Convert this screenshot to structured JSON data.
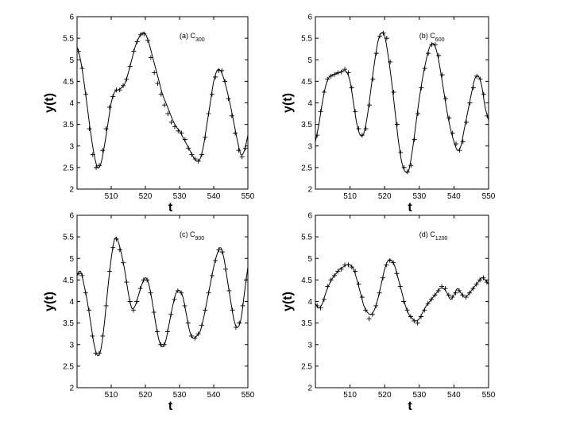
{
  "chart_data": [
    {
      "type": "line",
      "annotation": {
        "prefix": "(a) C",
        "sub": "300"
      },
      "xlabel": "t",
      "ylabel": "y(t)",
      "xlim": [
        500,
        550
      ],
      "ylim": [
        2,
        6
      ],
      "xticks": [
        510,
        520,
        530,
        540,
        550
      ],
      "yticks": [
        2,
        2.5,
        3,
        3.5,
        4,
        4.5,
        5,
        5.5,
        6
      ],
      "curve": {
        "x": [
          500,
          501,
          502,
          503,
          504,
          505,
          506,
          507,
          508,
          509,
          510,
          511,
          512,
          513,
          514,
          515,
          516,
          517,
          518,
          519,
          520,
          521,
          522,
          523,
          524,
          525,
          526,
          527,
          528,
          529,
          530,
          531,
          532,
          533,
          534,
          535,
          536,
          537,
          538,
          539,
          540,
          541,
          542,
          543,
          544,
          545,
          546,
          547,
          548,
          549,
          550
        ],
        "y": [
          5.3,
          5.0,
          4.5,
          3.9,
          3.3,
          2.8,
          2.5,
          2.6,
          3.0,
          3.5,
          4.0,
          4.25,
          4.3,
          4.35,
          4.45,
          4.7,
          5.0,
          5.3,
          5.5,
          5.62,
          5.6,
          5.4,
          5.1,
          4.8,
          4.5,
          4.2,
          4.0,
          3.8,
          3.6,
          3.45,
          3.35,
          3.2,
          3.05,
          2.9,
          2.75,
          2.65,
          2.7,
          3.0,
          3.5,
          4.0,
          4.5,
          4.75,
          4.75,
          4.55,
          4.25,
          3.9,
          3.5,
          3.1,
          2.8,
          2.9,
          3.25
        ]
      },
      "markers": {
        "x": [
          500.4,
          501.5,
          502.6,
          503.6,
          504.6,
          505.6,
          506.5,
          507.5,
          508.5,
          509.5,
          510.5,
          511.5,
          512.5,
          513.5,
          514.5,
          515.5,
          516.6,
          517.6,
          518.6,
          519.6,
          520.7,
          521.6,
          522.6,
          523.6,
          524.6,
          525.6,
          526.6,
          527.6,
          528.6,
          529.6,
          530.6,
          531.6,
          532.6,
          533.6,
          534.6,
          535.5,
          536.5,
          537.5,
          538.5,
          539.5,
          540.5,
          541.5,
          542.4,
          543.3,
          544.3,
          545.3,
          546.3,
          547.3,
          548.3,
          549.3
        ],
        "y": [
          5.2,
          4.8,
          4.2,
          3.4,
          2.8,
          2.5,
          2.55,
          2.9,
          3.4,
          3.9,
          4.15,
          4.3,
          4.3,
          4.4,
          4.55,
          4.85,
          5.2,
          5.42,
          5.58,
          5.6,
          5.45,
          5.05,
          4.7,
          4.45,
          4.2,
          3.95,
          3.75,
          3.55,
          3.45,
          3.35,
          3.3,
          3.15,
          2.95,
          2.8,
          2.7,
          2.65,
          2.8,
          3.2,
          3.75,
          4.2,
          4.6,
          4.75,
          4.75,
          4.5,
          4.1,
          3.7,
          3.3,
          2.9,
          2.75,
          2.95
        ]
      }
    },
    {
      "type": "line",
      "annotation": {
        "prefix": "(b) C",
        "sub": "600"
      },
      "xlabel": "t",
      "ylabel": "y(t)",
      "xlim": [
        500,
        550
      ],
      "ylim": [
        2,
        6
      ],
      "xticks": [
        510,
        520,
        530,
        540,
        550
      ],
      "yticks": [
        2,
        2.5,
        3,
        3.5,
        4,
        4.5,
        5,
        5.5,
        6
      ],
      "curve": {
        "x": [
          500,
          501,
          502,
          503,
          504,
          505,
          506,
          507,
          508,
          509,
          510,
          511,
          512,
          513,
          514,
          515,
          516,
          517,
          518,
          519,
          520,
          521,
          522,
          523,
          524,
          525,
          526,
          527,
          528,
          529,
          530,
          531,
          532,
          533,
          534,
          535,
          536,
          537,
          538,
          539,
          540,
          541,
          542,
          543,
          544,
          545,
          546,
          547,
          548,
          549,
          550
        ],
        "y": [
          3.1,
          3.5,
          4.0,
          4.4,
          4.6,
          4.65,
          4.68,
          4.7,
          4.75,
          4.72,
          4.5,
          4.0,
          3.5,
          3.25,
          3.3,
          3.7,
          4.3,
          4.9,
          5.4,
          5.62,
          5.55,
          5.1,
          4.5,
          3.8,
          3.1,
          2.6,
          2.4,
          2.45,
          2.9,
          3.5,
          4.1,
          4.6,
          5.0,
          5.3,
          5.38,
          5.2,
          4.8,
          4.3,
          3.8,
          3.4,
          3.1,
          2.9,
          3.0,
          3.4,
          3.8,
          4.2,
          4.55,
          4.62,
          4.4,
          3.9,
          3.6
        ]
      },
      "markers": {
        "x": [
          500.5,
          501.5,
          502.5,
          503.5,
          504.5,
          505.5,
          506.5,
          507.5,
          508.5,
          509.5,
          510.5,
          511.5,
          512.5,
          513.5,
          514.6,
          515.6,
          516.6,
          517.6,
          518.6,
          519.6,
          520.6,
          521.6,
          522.6,
          523.6,
          524.6,
          525.6,
          526.6,
          527.6,
          528.6,
          529.6,
          530.6,
          531.6,
          532.6,
          533.6,
          534.6,
          535.6,
          536.6,
          537.6,
          538.6,
          539.6,
          540.6,
          541.6,
          542.6,
          543.6,
          544.6,
          545.6,
          546.6,
          547.6,
          548.6,
          549.6
        ],
        "y": [
          3.25,
          3.8,
          4.25,
          4.55,
          4.62,
          4.66,
          4.7,
          4.72,
          4.78,
          4.7,
          4.35,
          3.8,
          3.4,
          3.25,
          3.4,
          3.95,
          4.55,
          5.15,
          5.55,
          5.62,
          5.5,
          4.95,
          4.25,
          3.5,
          2.85,
          2.5,
          2.4,
          2.55,
          3.15,
          3.75,
          4.35,
          4.8,
          5.15,
          5.35,
          5.35,
          5.1,
          4.65,
          4.1,
          3.65,
          3.3,
          3.05,
          2.9,
          3.1,
          3.55,
          4.0,
          4.35,
          4.62,
          4.55,
          4.2,
          3.7
        ]
      }
    },
    {
      "type": "line",
      "annotation": {
        "prefix": "(c) C",
        "sub": "900"
      },
      "xlabel": "t",
      "ylabel": "y(t)",
      "xlim": [
        500,
        550
      ],
      "ylim": [
        2,
        6
      ],
      "xticks": [
        510,
        520,
        530,
        540,
        550
      ],
      "yticks": [
        2,
        2.5,
        3,
        3.5,
        4,
        4.5,
        5,
        5.5,
        6
      ],
      "curve": {
        "x": [
          500,
          501,
          502,
          503,
          504,
          505,
          506,
          507,
          508,
          509,
          510,
          511,
          512,
          513,
          514,
          515,
          516,
          517,
          518,
          519,
          520,
          521,
          522,
          523,
          524,
          525,
          526,
          527,
          528,
          529,
          530,
          531,
          532,
          533,
          534,
          535,
          536,
          537,
          538,
          539,
          540,
          541,
          542,
          543,
          544,
          545,
          546,
          547,
          548,
          549,
          550
        ],
        "y": [
          4.6,
          4.7,
          4.4,
          4.0,
          3.5,
          3.0,
          2.75,
          2.9,
          3.5,
          4.3,
          5.0,
          5.45,
          5.4,
          5.1,
          4.7,
          4.2,
          3.85,
          3.9,
          4.15,
          4.4,
          4.55,
          4.4,
          4.0,
          3.5,
          3.1,
          2.95,
          3.1,
          3.5,
          3.9,
          4.2,
          4.25,
          4.1,
          3.7,
          3.3,
          3.15,
          3.2,
          3.3,
          3.6,
          4.0,
          4.4,
          4.8,
          5.1,
          5.25,
          5.0,
          4.5,
          4.0,
          3.55,
          3.4,
          3.6,
          4.2,
          4.8
        ]
      },
      "markers": {
        "x": [
          500.5,
          501.5,
          502.5,
          503.5,
          504.5,
          505.5,
          506.5,
          507.5,
          508.5,
          509.5,
          510.5,
          511.5,
          512.5,
          513.5,
          514.5,
          515.5,
          516.5,
          517.5,
          518.5,
          519.5,
          520.5,
          521.5,
          522.5,
          523.5,
          524.5,
          525.5,
          526.5,
          527.5,
          528.5,
          529.5,
          530.5,
          531.5,
          532.5,
          533.5,
          534.5,
          535.5,
          536.5,
          537.5,
          538.5,
          539.5,
          540.5,
          541.5,
          542.5,
          543.5,
          544.5,
          545.5,
          546.5,
          547.5,
          548.5,
          549.5
        ],
        "y": [
          4.65,
          4.6,
          4.2,
          3.8,
          3.2,
          2.8,
          2.8,
          3.2,
          3.9,
          4.7,
          5.25,
          5.45,
          5.2,
          4.9,
          4.45,
          4.0,
          3.8,
          4.0,
          4.3,
          4.5,
          4.5,
          4.2,
          3.75,
          3.3,
          3.0,
          3.0,
          3.3,
          3.7,
          4.05,
          4.25,
          4.2,
          3.9,
          3.5,
          3.2,
          3.15,
          3.25,
          3.45,
          3.8,
          4.2,
          4.6,
          4.95,
          5.2,
          5.15,
          4.75,
          4.25,
          3.8,
          3.4,
          3.5,
          3.9,
          4.5
        ]
      }
    },
    {
      "type": "line",
      "annotation": {
        "prefix": "(d) C",
        "sub": "1200"
      },
      "xlabel": "t",
      "ylabel": "y(t)",
      "xlim": [
        500,
        550
      ],
      "ylim": [
        2,
        6
      ],
      "xticks": [
        510,
        520,
        530,
        540,
        550
      ],
      "yticks": [
        2,
        2.5,
        3,
        3.5,
        4,
        4.5,
        5,
        5.5,
        6
      ],
      "curve": {
        "x": [
          500,
          501,
          502,
          503,
          504,
          505,
          506,
          507,
          508,
          509,
          510,
          511,
          512,
          513,
          514,
          515,
          516,
          517,
          518,
          519,
          520,
          521,
          522,
          523,
          524,
          525,
          526,
          527,
          528,
          529,
          530,
          531,
          532,
          533,
          534,
          535,
          536,
          537,
          538,
          539,
          540,
          541,
          542,
          543,
          544,
          545,
          546,
          547,
          548,
          549,
          550
        ],
        "y": [
          3.95,
          3.85,
          3.95,
          4.2,
          4.4,
          4.55,
          4.65,
          4.75,
          4.8,
          4.85,
          4.85,
          4.75,
          4.5,
          4.2,
          3.9,
          3.75,
          3.7,
          3.8,
          4.05,
          4.4,
          4.75,
          4.95,
          4.95,
          4.8,
          4.5,
          4.2,
          3.9,
          3.7,
          3.6,
          3.55,
          3.6,
          3.75,
          3.9,
          4.0,
          4.1,
          4.2,
          4.3,
          4.3,
          4.2,
          4.05,
          4.15,
          4.3,
          4.2,
          4.1,
          4.15,
          4.25,
          4.35,
          4.45,
          4.55,
          4.5,
          4.4
        ]
      },
      "markers": {
        "x": [
          500.5,
          501.5,
          502.5,
          503.5,
          504.5,
          505.5,
          506.5,
          507.5,
          508.5,
          509.5,
          510.5,
          511.5,
          512.5,
          513.5,
          514.5,
          515.5,
          516.5,
          517.5,
          518.5,
          519.5,
          520.5,
          521.5,
          522.5,
          523.5,
          524.5,
          525.5,
          526.5,
          527.5,
          528.5,
          529.5,
          530.5,
          531.5,
          532.5,
          533.5,
          534.5,
          535.5,
          536.5,
          537.5,
          538.5,
          539.5,
          540.5,
          541.5,
          542.5,
          543.5,
          544.5,
          545.5,
          546.5,
          547.5,
          548.5,
          549.5
        ],
        "y": [
          3.9,
          3.85,
          4.05,
          4.35,
          4.5,
          4.6,
          4.7,
          4.75,
          4.85,
          4.85,
          4.8,
          4.7,
          4.4,
          4.1,
          3.8,
          3.6,
          3.7,
          3.9,
          4.2,
          4.55,
          4.85,
          4.95,
          4.9,
          4.65,
          4.35,
          4.0,
          3.8,
          3.65,
          3.55,
          3.5,
          3.65,
          3.8,
          3.95,
          4.05,
          4.15,
          4.25,
          4.35,
          4.3,
          4.15,
          4.1,
          4.2,
          4.25,
          4.15,
          4.1,
          4.2,
          4.3,
          4.4,
          4.5,
          4.55,
          4.45
        ]
      }
    }
  ]
}
